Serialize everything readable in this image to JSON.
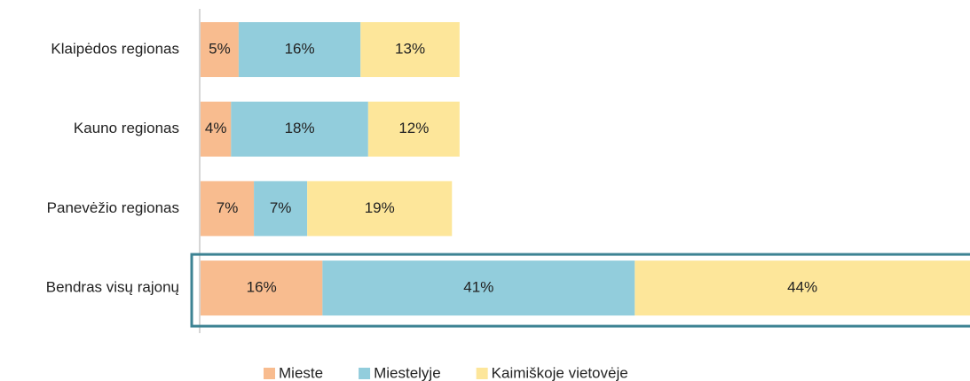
{
  "chart_data": {
    "type": "stacked-bar-horizontal",
    "categories": [
      "Klaipėdos regionas",
      "Kauno regionas",
      "Panevėžio regionas",
      "Bendras visų rajonų"
    ],
    "series": [
      {
        "name": "Mieste",
        "color": "#f8bc8f",
        "values": [
          5,
          4,
          7,
          16
        ],
        "value_labels": [
          "5%",
          "4%",
          "7%",
          "16%"
        ]
      },
      {
        "name": "Miestelyje",
        "color": "#92cddc",
        "values": [
          16,
          18,
          7,
          41
        ],
        "value_labels": [
          "16%",
          "18%",
          "7%",
          "41%"
        ]
      },
      {
        "name": "Kaimiškoje vietovėje",
        "color": "#fde69a",
        "values": [
          13,
          12,
          19,
          44
        ],
        "value_labels": [
          "13%",
          "12%",
          "19%",
          "44%"
        ]
      }
    ],
    "legend": "bottom"
  }
}
